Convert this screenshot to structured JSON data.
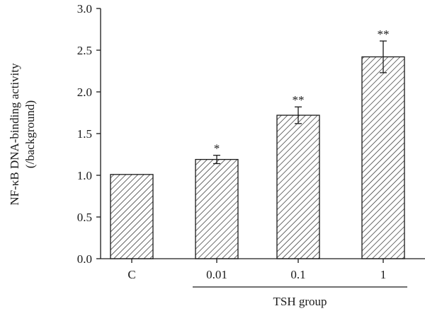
{
  "chart_data": {
    "type": "bar",
    "title": "",
    "ylabel": "NF-κB DNA-binding activity",
    "ylabel_line2": "(/background)",
    "xlabel": "",
    "categories": [
      "C",
      "0.01",
      "0.1",
      "1"
    ],
    "values": [
      1.01,
      1.19,
      1.72,
      2.42
    ],
    "errors": [
      0,
      0.05,
      0.1,
      0.19
    ],
    "significance": [
      "",
      "*",
      "**",
      "**"
    ],
    "ylim": [
      0,
      3.0
    ],
    "yticks": [
      "0.0",
      "0.5",
      "1.0",
      "1.5",
      "2.0",
      "2.5",
      "3.0"
    ],
    "group_bracket": {
      "label": "TSH group",
      "from_category": 1,
      "to_category": 3
    },
    "bar_fill": "diagonal-hatch",
    "grid": false,
    "legend": "none"
  },
  "colors": {
    "axis": "#1a1a1a",
    "bar_stroke": "#1a1a1a",
    "hatch": "#1a1a1a",
    "background": "#ffffff"
  }
}
